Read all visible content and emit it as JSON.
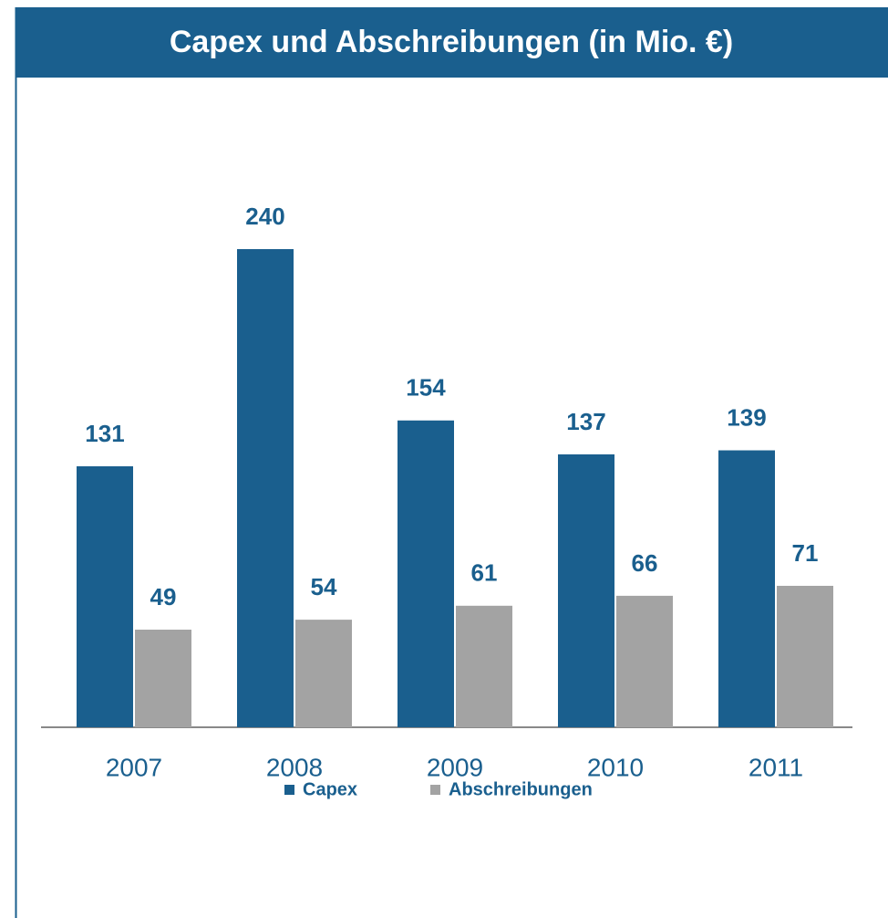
{
  "chart_data": {
    "type": "bar",
    "title": "Capex und Abschreibungen (in Mio. €)",
    "categories": [
      "2007",
      "2008",
      "2009",
      "2010",
      "2011"
    ],
    "series": [
      {
        "name": "Capex",
        "color": "#1a5f8e",
        "values": [
          131,
          240,
          154,
          137,
          139
        ]
      },
      {
        "name": "Abschreibungen",
        "color": "#a3a3a3",
        "values": [
          49,
          54,
          61,
          66,
          71
        ]
      }
    ]
  }
}
